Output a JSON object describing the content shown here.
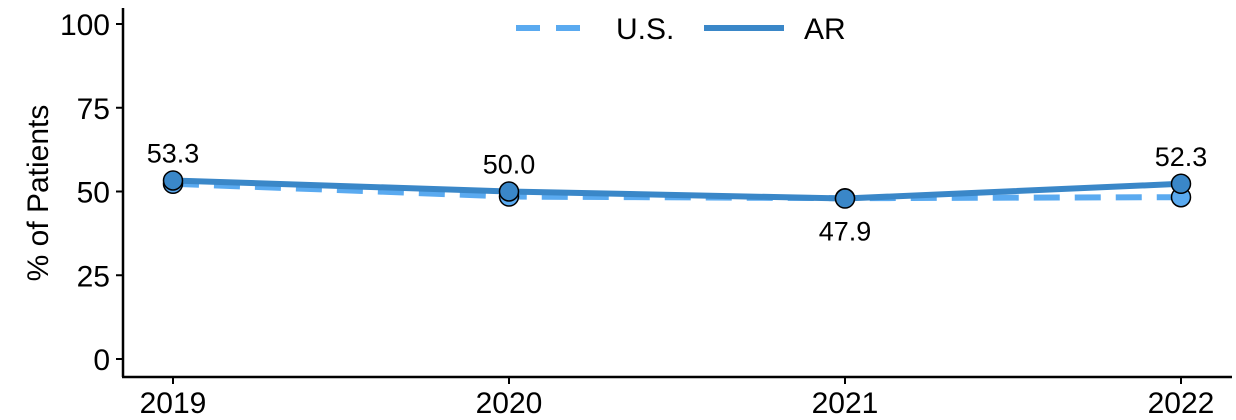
{
  "chart_data": {
    "type": "line",
    "x": [
      "2019",
      "2020",
      "2021",
      "2022"
    ],
    "ylabel": "% of Patients",
    "ylim": [
      0,
      100
    ],
    "yticks": [
      "0",
      "25",
      "50",
      "75",
      "100"
    ],
    "grid": false,
    "legend_position": "top-center",
    "series": [
      {
        "name": "U.S.",
        "values": [
          52.3,
          48.5,
          48.0,
          48.3
        ],
        "color": "#5aaaf0",
        "line_style": "dashed"
      },
      {
        "name": "AR",
        "values": [
          53.3,
          50.0,
          47.9,
          52.3
        ],
        "color": "#3a87c8",
        "line_style": "solid",
        "data_labels": [
          "53.3",
          "50.0",
          "47.9",
          "52.3"
        ]
      }
    ]
  }
}
